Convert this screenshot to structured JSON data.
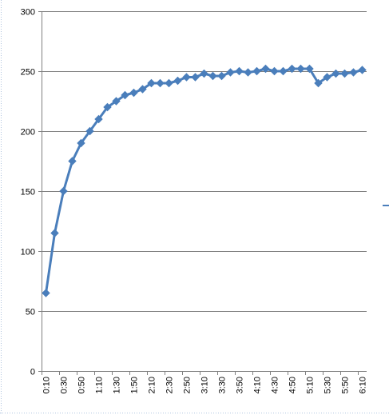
{
  "chart_data": {
    "type": "line",
    "title": "",
    "xlabel": "",
    "ylabel": "",
    "ylim": [
      0,
      300
    ],
    "y_ticks": [
      0,
      50,
      100,
      150,
      200,
      250,
      300
    ],
    "grid": "horizontal",
    "legend": "none",
    "marker": "diamond",
    "colors": {
      "series": "#4A7EBB",
      "grid": "#808080",
      "axis": "#808080"
    },
    "x": [
      "0:10",
      "0:20",
      "0:30",
      "0:40",
      "0:50",
      "1:00",
      "1:10",
      "1:20",
      "1:30",
      "1:40",
      "1:50",
      "2:00",
      "2:10",
      "2:20",
      "2:30",
      "2:40",
      "2:50",
      "3:00",
      "3:10",
      "3:20",
      "3:30",
      "3:40",
      "3:50",
      "4:00",
      "4:10",
      "4:20",
      "4:30",
      "4:40",
      "4:50",
      "5:00",
      "5:10",
      "5:20",
      "5:30",
      "5:40",
      "5:50",
      "6:00",
      "6:10"
    ],
    "x_tick_labels": [
      "0:10",
      "0:30",
      "0:50",
      "1:10",
      "1:30",
      "1:50",
      "2:10",
      "2:30",
      "2:50",
      "3:10",
      "3:30",
      "3:50",
      "4:10",
      "4:30",
      "4:50",
      "5:10",
      "5:30",
      "5:50",
      "6:10"
    ],
    "series": [
      {
        "values": [
          65,
          115,
          150,
          175,
          190,
          200,
          210,
          220,
          225,
          230,
          232,
          235,
          240,
          240,
          240,
          242,
          245,
          245,
          248,
          246,
          246,
          249,
          250,
          249,
          250,
          252,
          250,
          250,
          252,
          252,
          252,
          240,
          245,
          248,
          248,
          249,
          251
        ]
      }
    ]
  }
}
